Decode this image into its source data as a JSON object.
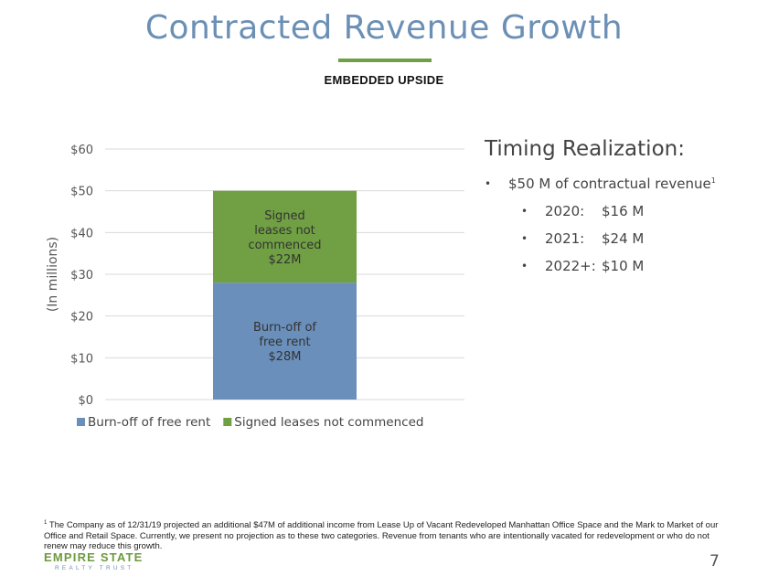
{
  "header": {
    "title": "Contracted Revenue Growth",
    "subtitle": "EMBEDDED UPSIDE"
  },
  "timing": {
    "title": "Timing Realization:",
    "main_bullet_text": "$50 M of contractual revenue",
    "main_bullet_sup": "1",
    "items": [
      {
        "year": "2020:",
        "value": "$16 M"
      },
      {
        "year": "2021:",
        "value": "$24 M"
      },
      {
        "year": "2022+:",
        "value": "$10 M"
      }
    ]
  },
  "footnote": {
    "sup": "1",
    "text": "The Company as of 12/31/19 projected an additional $47M of additional income from Lease Up of Vacant Redeveloped Manhattan Office Space and the Mark to Market of our Office and Retail Space.  Currently, we present no projection as to these two categories.  Revenue from tenants who are intentionally vacated for redevelopment or who do not renew may reduce this growth."
  },
  "logo": {
    "name": "EMPIRE STATE",
    "tagline": "REALTY TRUST"
  },
  "page_number": "7",
  "chart_data": {
    "type": "bar",
    "stacked": true,
    "categories": [
      ""
    ],
    "series": [
      {
        "name": "Burn-off of free rent",
        "values": [
          28
        ],
        "color": "#6a8fbb",
        "label_lines": [
          "Burn-off of",
          "free rent",
          "$28M"
        ]
      },
      {
        "name": "Signed leases not commenced",
        "values": [
          22
        ],
        "color": "#70a043",
        "label_lines": [
          "Signed",
          "leases not",
          "commenced",
          "$22M"
        ]
      }
    ],
    "ylabel": "(In millions)",
    "ylim": [
      0,
      60
    ],
    "yticks": [
      0,
      10,
      20,
      30,
      40,
      50,
      60
    ],
    "ytick_labels": [
      "$0",
      "$10",
      "$20",
      "$30",
      "$40",
      "$50",
      "$60"
    ],
    "grid": true,
    "legend_position": "bottom"
  }
}
